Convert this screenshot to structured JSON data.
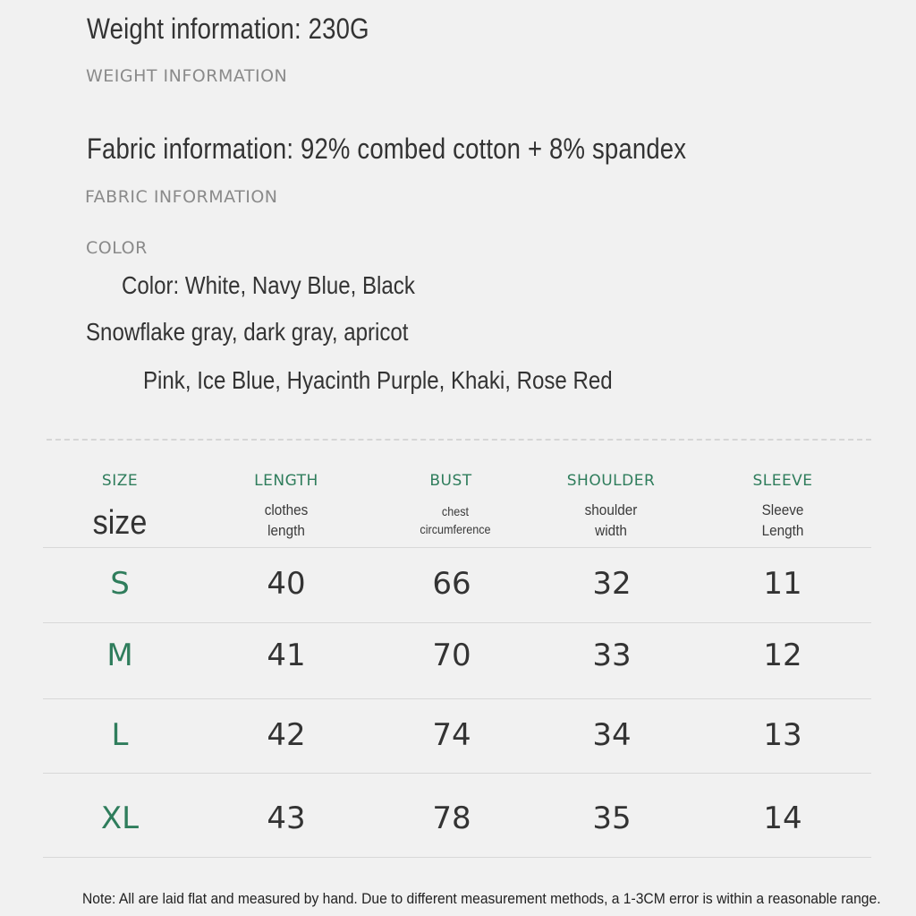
{
  "weight": {
    "title": "Weight information: 230G",
    "subtitle": "WEIGHT INFORMATION"
  },
  "fabric": {
    "title": "Fabric information: 92% combed cotton + 8% spandex",
    "subtitle": "FABRIC INFORMATION"
  },
  "color": {
    "label": "COLOR",
    "lines": [
      "Color: White, Navy Blue, Black",
      "Snowflake gray, dark gray, apricot",
      "Pink, Ice Blue, Hyacinth Purple, Khaki, Rose Red"
    ]
  },
  "table": {
    "headers": [
      {
        "en": "SIZE",
        "sub": "size"
      },
      {
        "en": "LENGTH",
        "sub": [
          "clothes",
          "length"
        ]
      },
      {
        "en": "BUST",
        "sub": [
          "chest",
          "circumference"
        ]
      },
      {
        "en": "SHOULDER",
        "sub": [
          "shoulder",
          "width"
        ]
      },
      {
        "en": "SLEEVE",
        "sub": [
          "Sleeve",
          "Length"
        ]
      }
    ],
    "rows": [
      {
        "size": "S",
        "length": "40",
        "bust": "66",
        "shoulder": "32",
        "sleeve": "11"
      },
      {
        "size": "M",
        "length": "41",
        "bust": "70",
        "shoulder": "33",
        "sleeve": "12"
      },
      {
        "size": "L",
        "length": "42",
        "bust": "74",
        "shoulder": "34",
        "sleeve": "13"
      },
      {
        "size": "XL",
        "length": "43",
        "bust": "78",
        "shoulder": "35",
        "sleeve": "14"
      }
    ]
  },
  "note": "Note: All are laid flat and measured by hand. Due to different measurement methods, a 1-3CM error is within a reasonable range.",
  "colors": {
    "accent_green": "#2f7d5c",
    "text_dark": "#333333",
    "text_gray": "#8a8a8a",
    "background": "#f1f1f1"
  }
}
